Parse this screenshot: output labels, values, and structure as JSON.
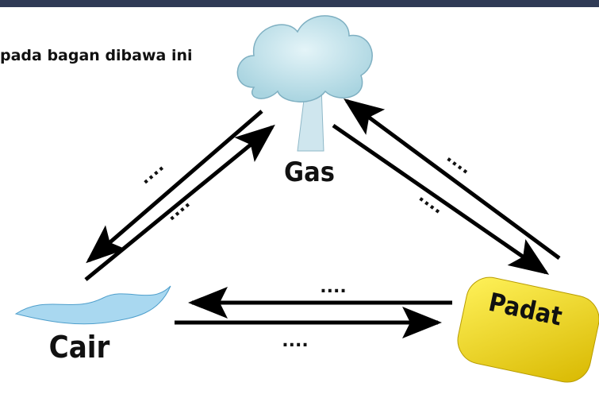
{
  "instruction": "pada bagan dibawa ini",
  "nodes": [
    {
      "label": "Gas"
    },
    {
      "label": "Cair"
    },
    {
      "label": "Padat"
    }
  ],
  "arrows": [
    {
      "label": "...."
    },
    {
      "label": "...."
    },
    {
      "label": "...."
    },
    {
      "label": "...."
    },
    {
      "label": "...."
    },
    {
      "label": "...."
    }
  ]
}
